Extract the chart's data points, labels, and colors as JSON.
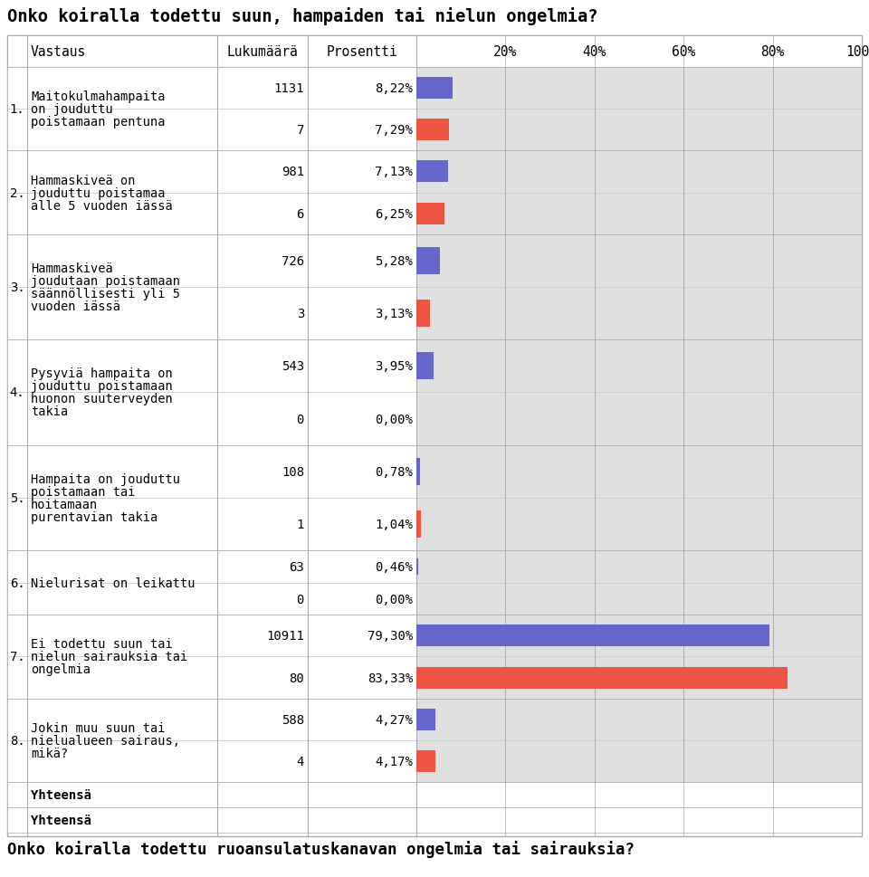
{
  "title_top": "Onko koiralla todettu suun, hampaiden tai nielun ongelmia?",
  "title_bottom": "Onko koiralla todettu ruoansulatuskanavan ongelmia tai sairauksia?",
  "rows": [
    {
      "num": "1.",
      "label": "Maitokulmahampaita\non jouduttu\npoistamaan pentuna",
      "count1": "1131",
      "pct1": "8,22%",
      "val1": 8.22,
      "count2": "7",
      "pct2": "7,29%",
      "val2": 7.29,
      "row_lines": 3
    },
    {
      "num": "2.",
      "label": "Hammaskiveä on\njouduttu poistamaa\nalle 5 vuoden iässä",
      "count1": "981",
      "pct1": "7,13%",
      "val1": 7.13,
      "count2": "6",
      "pct2": "6,25%",
      "val2": 6.25,
      "row_lines": 3
    },
    {
      "num": "3.",
      "label": "Hammaskiveä\njoudutaan poistamaan\nsäännöllisesti yli 5\nvuoden iässä",
      "count1": "726",
      "pct1": "5,28%",
      "val1": 5.28,
      "count2": "3",
      "pct2": "3,13%",
      "val2": 3.13,
      "row_lines": 4
    },
    {
      "num": "4.",
      "label": "Pysyviä hampaita on\njouduttu poistamaan\nhuonon suuterveyden\ntakia",
      "count1": "543",
      "pct1": "3,95%",
      "val1": 3.95,
      "count2": "0",
      "pct2": "0,00%",
      "val2": 0.0,
      "row_lines": 4
    },
    {
      "num": "5.",
      "label": "Hampaita on jouduttu\npoistamaan tai\nhoitamaan\npurentavian takia",
      "count1": "108",
      "pct1": "0,78%",
      "val1": 0.78,
      "count2": "1",
      "pct2": "1,04%",
      "val2": 1.04,
      "row_lines": 4
    },
    {
      "num": "6.",
      "label": "Nielurisat on leikattu",
      "count1": "63",
      "pct1": "0,46%",
      "val1": 0.46,
      "count2": "0",
      "pct2": "0,00%",
      "val2": 0.0,
      "row_lines": 1
    },
    {
      "num": "7.",
      "label": "Ei todettu suun tai\nnielun sairauksia tai\nongelmia",
      "count1": "10911",
      "pct1": "79,30%",
      "val1": 79.3,
      "count2": "80",
      "pct2": "83,33%",
      "val2": 83.33,
      "row_lines": 3
    },
    {
      "num": "8.",
      "label": "Jokin muu suun tai\nnielualueen sairaus,\nmikä?",
      "count1": "588",
      "pct1": "4,27%",
      "val1": 4.27,
      "count2": "4",
      "pct2": "4,17%",
      "val2": 4.17,
      "row_lines": 3
    }
  ],
  "footer_rows": [
    "Yhteensä",
    "Yhteensä"
  ],
  "bar_color1": "#6666cc",
  "bar_color2": "#ee5544",
  "bar_bg": "#e0e0e0",
  "table_line_color": "#aaaaaa",
  "sub_line_color": "#cccccc"
}
